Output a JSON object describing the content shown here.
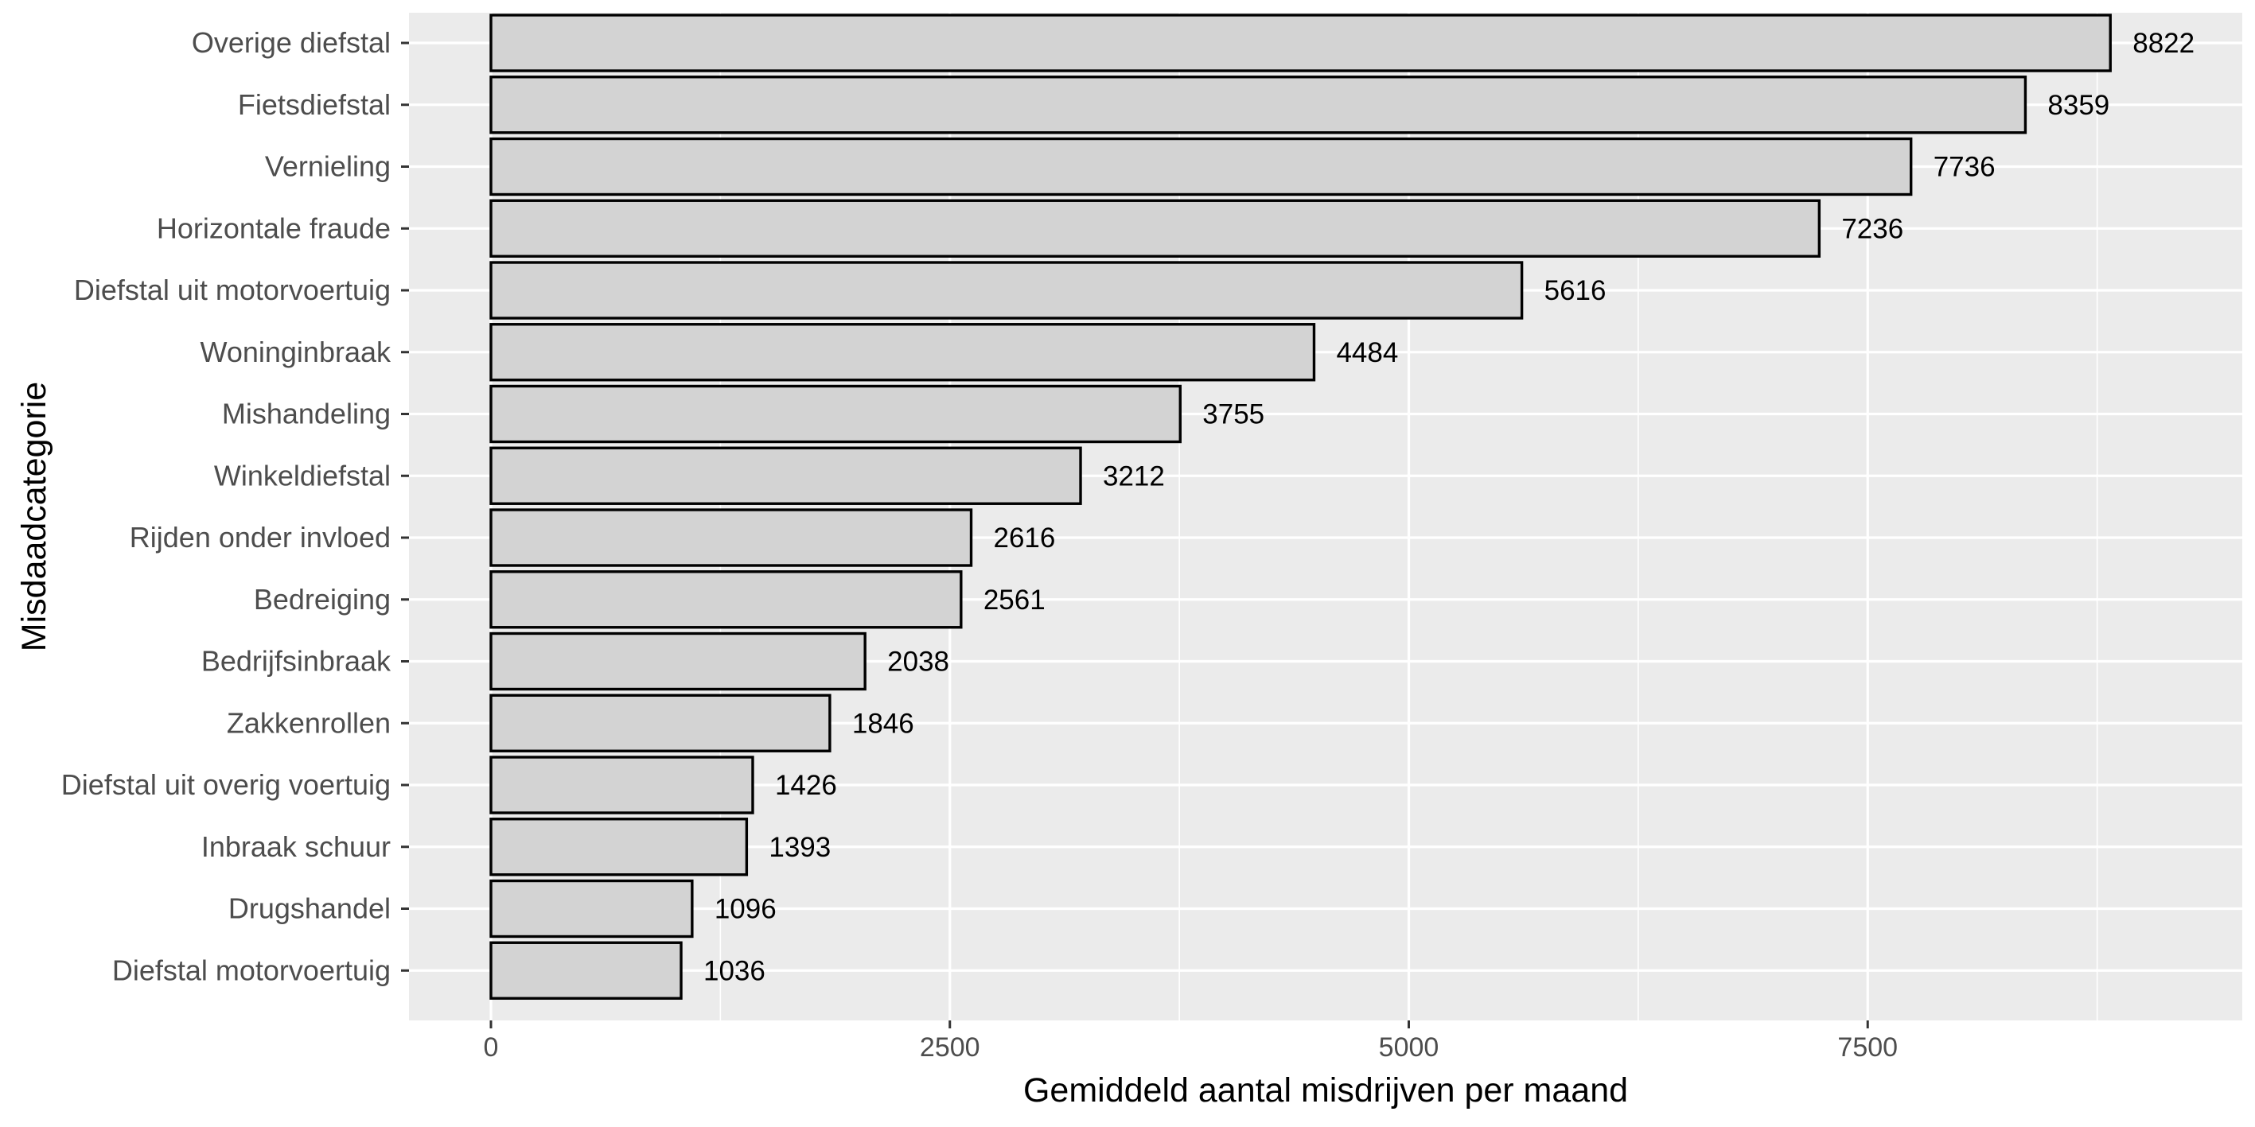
{
  "chart_data": {
    "type": "bar",
    "orientation": "horizontal",
    "categories": [
      "Overige diefstal",
      "Fietsdiefstal",
      "Vernieling",
      "Horizontale fraude",
      "Diefstal uit motorvoertuig",
      "Woninginbraak",
      "Mishandeling",
      "Winkeldiefstal",
      "Rijden onder invloed",
      "Bedreiging",
      "Bedrijfsinbraak",
      "Zakkenrollen",
      "Diefstal uit overig voertuig",
      "Inbraak schuur",
      "Drugshandel",
      "Diefstal motorvoertuig"
    ],
    "values": [
      8822,
      8359,
      7736,
      7236,
      5616,
      4484,
      3755,
      3212,
      2616,
      2561,
      2038,
      1846,
      1426,
      1393,
      1096,
      1036
    ],
    "data_labels": [
      "8822",
      "8359",
      "7736",
      "7236",
      "5616",
      "4484",
      "3755",
      "3212",
      "2616",
      "2561",
      "2038",
      "1846",
      "1426",
      "1393",
      "1096",
      "1036"
    ],
    "xlabel": "Gemiddeld aantal misdrijven per maand",
    "ylabel": "Misdaadcategorie",
    "xticks": [
      0,
      2500,
      5000,
      7500
    ],
    "xtick_labels": [
      "0",
      "2500",
      "5000",
      "7500"
    ],
    "xlim": [
      -460,
      9700
    ],
    "grid": true,
    "legend": "none",
    "colors": {
      "panel_background": "#ebebeb",
      "grid": "#ffffff",
      "bar_fill": "#d3d3d3",
      "bar_outline": "#000000"
    }
  }
}
